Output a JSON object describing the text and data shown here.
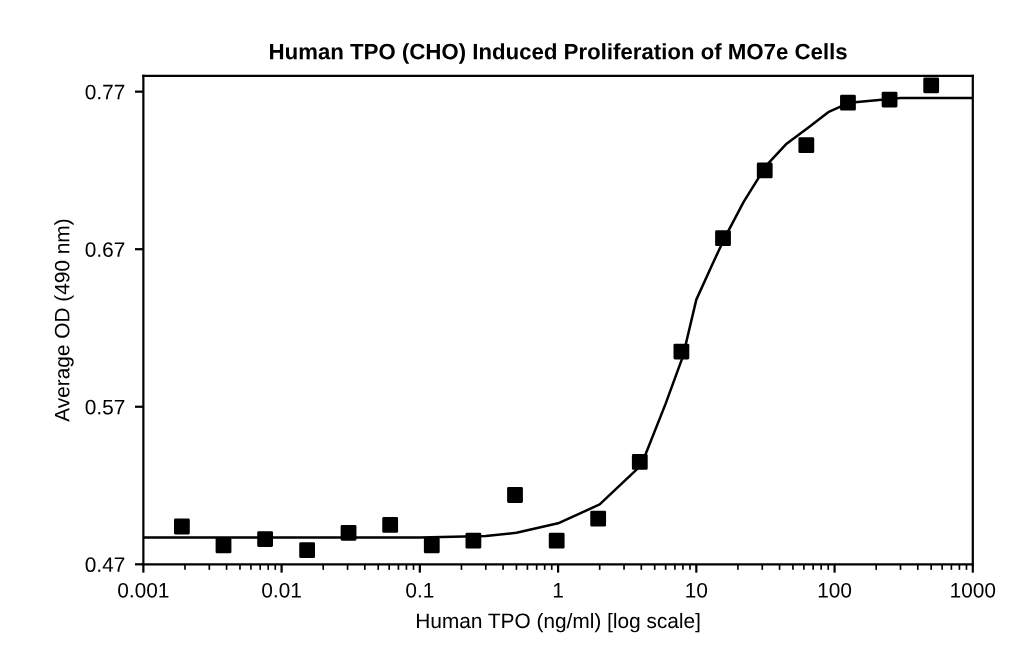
{
  "chart_data": {
    "type": "scatter",
    "title": "Human TPO (CHO) Induced Proliferation of MO7e Cells",
    "xlabel": "Human TPO (ng/ml) [log scale]",
    "ylabel": "Average OD (490 nm)",
    "log": "x",
    "grid": false,
    "legend": false,
    "xlim": [
      0.001,
      1000
    ],
    "xticks": [
      0.001,
      0.01,
      0.1,
      1,
      10,
      100,
      1000
    ],
    "ylim": [
      0.47,
      0.78
    ],
    "yticks": [
      0.47,
      0.57,
      0.67,
      0.77
    ],
    "series": [
      {
        "marker": "square",
        "color": "#000000",
        "x": [
          0.0019,
          0.0038,
          0.0076,
          0.0153,
          0.0305,
          0.061,
          0.122,
          0.244,
          0.488,
          0.977,
          1.95,
          3.9,
          7.8,
          15.6,
          31.25,
          62.5,
          125,
          250,
          500
        ],
        "values": [
          0.494,
          0.482,
          0.486,
          0.479,
          0.49,
          0.495,
          0.482,
          0.485,
          0.514,
          0.485,
          0.499,
          0.535,
          0.605,
          0.677,
          0.72,
          0.736,
          0.763,
          0.765,
          0.774
        ]
      },
      {
        "type": "line",
        "marker": "none",
        "line_style": "solid",
        "color": "#000000",
        "x": [
          0.001,
          0.01,
          0.1,
          0.3,
          0.5,
          1,
          2,
          4,
          6,
          8,
          10,
          13,
          16,
          22,
          32,
          45,
          64,
          90,
          128,
          300,
          1000
        ],
        "values": [
          0.487,
          0.487,
          0.487,
          0.488,
          0.49,
          0.496,
          0.508,
          0.533,
          0.572,
          0.602,
          0.638,
          0.66,
          0.677,
          0.7,
          0.723,
          0.737,
          0.747,
          0.757,
          0.763,
          0.766,
          0.766
        ]
      }
    ]
  }
}
